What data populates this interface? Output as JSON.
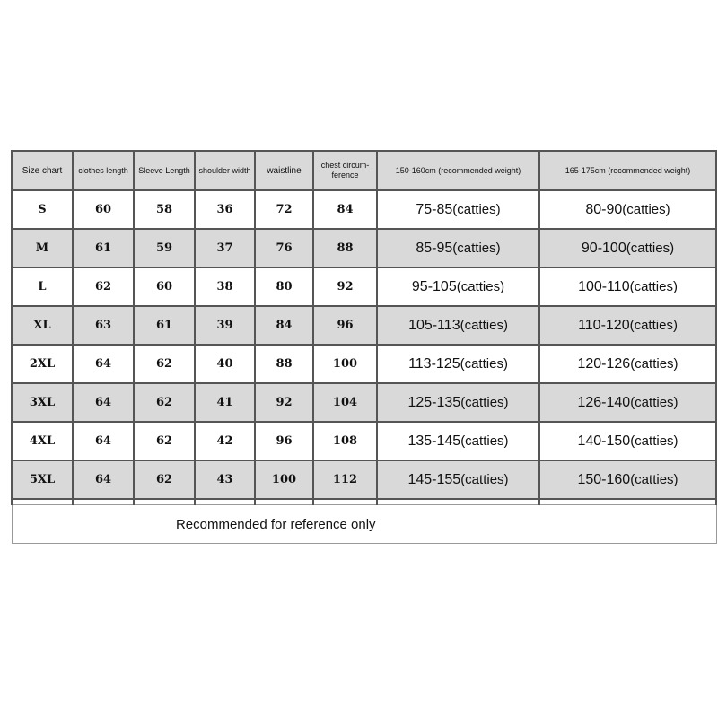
{
  "headers": [
    "Size chart",
    "clothes length",
    "Sleeve Length",
    "shoulder width",
    "waistline",
    "chest circum-ference",
    "150-160cm (recommended weight)",
    "165-175cm (recommended weight)"
  ],
  "rows": [
    {
      "size": "S",
      "clothes": "60",
      "sleeve": "58",
      "shoulder": "36",
      "waist": "72",
      "chest": "84",
      "w1": "75-85",
      "w2": "80-90"
    },
    {
      "size": "M",
      "clothes": "61",
      "sleeve": "59",
      "shoulder": "37",
      "waist": "76",
      "chest": "88",
      "w1": "85-95",
      "w2": "90-100"
    },
    {
      "size": "L",
      "clothes": "62",
      "sleeve": "60",
      "shoulder": "38",
      "waist": "80",
      "chest": "92",
      "w1": "95-105",
      "w2": "100-110"
    },
    {
      "size": "XL",
      "clothes": "63",
      "sleeve": "61",
      "shoulder": "39",
      "waist": "84",
      "chest": "96",
      "w1": "105-113",
      "w2": "110-120"
    },
    {
      "size": "2XL",
      "clothes": "64",
      "sleeve": "62",
      "shoulder": "40",
      "waist": "88",
      "chest": "100",
      "w1": "113-125",
      "w2": "120-126"
    },
    {
      "size": "3XL",
      "clothes": "64",
      "sleeve": "62",
      "shoulder": "41",
      "waist": "92",
      "chest": "104",
      "w1": "125-135",
      "w2": "126-140"
    },
    {
      "size": "4XL",
      "clothes": "64",
      "sleeve": "62",
      "shoulder": "42",
      "waist": "96",
      "chest": "108",
      "w1": "135-145",
      "w2": "140-150"
    },
    {
      "size": "5XL",
      "clothes": "64",
      "sleeve": "62",
      "shoulder": "43",
      "waist": "100",
      "chest": "112",
      "w1": "145-155",
      "w2": "150-160"
    }
  ],
  "unit": "(catties)",
  "footer": "Recommended for reference only",
  "colors": {
    "header_bg": "#d9d9d9",
    "border": "#555555"
  }
}
